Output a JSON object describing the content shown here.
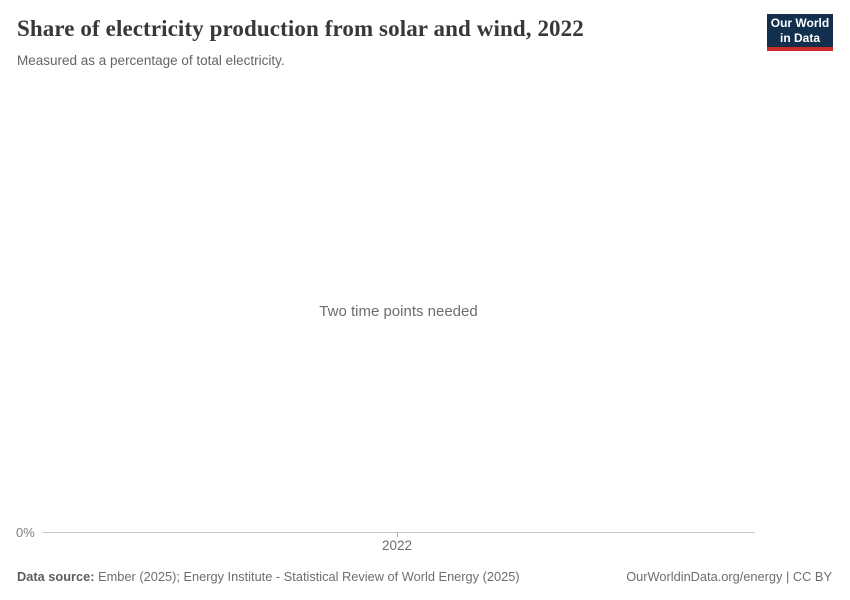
{
  "header": {
    "title": "Share of electricity production from solar and wind, 2022",
    "subtitle": "Measured as a percentage of total electricity."
  },
  "logo": {
    "line1": "Our World",
    "line2": "in Data",
    "bg_color": "#12304e",
    "accent_color": "#cb2a26"
  },
  "chart": {
    "empty_message": "Two time points needed",
    "y_axis": {
      "tick_label": "0%"
    },
    "x_axis": {
      "tick_label": "2022"
    },
    "axis_line_color": "#cacaca"
  },
  "footer": {
    "source_label": "Data source:",
    "source_value": "Ember (2025); Energy Institute - Statistical Review of World Energy (2025)",
    "attribution": "OurWorldinData.org/energy | CC BY"
  },
  "chart_data": {
    "type": "line",
    "title": "Share of electricity production from solar and wind, 2022",
    "subtitle": "Measured as a percentage of total electricity.",
    "x_tick_labels": [
      "2022"
    ],
    "y_tick_labels": [
      "0%"
    ],
    "series": [],
    "empty_state_message": "Two time points needed",
    "grid": false,
    "legend": false
  }
}
